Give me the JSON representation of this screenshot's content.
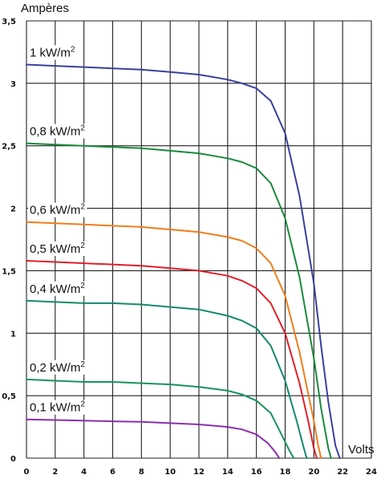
{
  "chart_data": {
    "type": "line",
    "title": "",
    "ylabel": "Ampères",
    "xlabel": "Volts",
    "xlim": [
      0,
      24
    ],
    "ylim": [
      0,
      3.5
    ],
    "x_ticks": [
      "0",
      "2",
      "4",
      "6",
      "8",
      "10",
      "12",
      "14",
      "16",
      "18",
      "20",
      "22",
      "24"
    ],
    "y_ticks": [
      "0",
      "0,5",
      "1",
      "1,5",
      "2",
      "2,5",
      "3",
      "3,5"
    ],
    "grid": true,
    "series": [
      {
        "name": "1 kW/m",
        "sup": "2",
        "color": "#3b3f9e",
        "points": [
          [
            0,
            3.15
          ],
          [
            2,
            3.14
          ],
          [
            4,
            3.13
          ],
          [
            6,
            3.12
          ],
          [
            8,
            3.11
          ],
          [
            10,
            3.09
          ],
          [
            12,
            3.07
          ],
          [
            14,
            3.03
          ],
          [
            15,
            3.0
          ],
          [
            16,
            2.96
          ],
          [
            17,
            2.86
          ],
          [
            18,
            2.6
          ],
          [
            19,
            2.1
          ],
          [
            20,
            1.4
          ],
          [
            20.5,
            0.9
          ],
          [
            21,
            0.45
          ],
          [
            21.5,
            0.1
          ],
          [
            21.8,
            0
          ]
        ]
      },
      {
        "name": "0,8 kW/m",
        "sup": "2",
        "color": "#1a8a3c",
        "points": [
          [
            0,
            2.52
          ],
          [
            2,
            2.51
          ],
          [
            4,
            2.5
          ],
          [
            6,
            2.49
          ],
          [
            8,
            2.48
          ],
          [
            10,
            2.46
          ],
          [
            12,
            2.44
          ],
          [
            14,
            2.4
          ],
          [
            15,
            2.37
          ],
          [
            16,
            2.32
          ],
          [
            17,
            2.2
          ],
          [
            18,
            1.92
          ],
          [
            19,
            1.45
          ],
          [
            20,
            0.8
          ],
          [
            20.5,
            0.4
          ],
          [
            21,
            0.08
          ],
          [
            21.2,
            0
          ]
        ]
      },
      {
        "name": "0,6 kW/m",
        "sup": "2",
        "color": "#f07d1a",
        "points": [
          [
            0,
            1.89
          ],
          [
            2,
            1.88
          ],
          [
            4,
            1.87
          ],
          [
            6,
            1.86
          ],
          [
            8,
            1.85
          ],
          [
            10,
            1.83
          ],
          [
            12,
            1.81
          ],
          [
            14,
            1.77
          ],
          [
            15,
            1.74
          ],
          [
            16,
            1.68
          ],
          [
            17,
            1.56
          ],
          [
            18,
            1.3
          ],
          [
            19,
            0.85
          ],
          [
            20,
            0.3
          ],
          [
            20.3,
            0.1
          ],
          [
            20.5,
            0
          ]
        ]
      },
      {
        "name": "0,5 kW/m",
        "sup": "2",
        "color": "#e0202a",
        "points": [
          [
            0,
            1.58
          ],
          [
            2,
            1.57
          ],
          [
            4,
            1.56
          ],
          [
            6,
            1.55
          ],
          [
            8,
            1.54
          ],
          [
            10,
            1.52
          ],
          [
            12,
            1.5
          ],
          [
            14,
            1.46
          ],
          [
            15,
            1.42
          ],
          [
            16,
            1.36
          ],
          [
            17,
            1.24
          ],
          [
            18,
            1.0
          ],
          [
            19,
            0.6
          ],
          [
            19.6,
            0.3
          ],
          [
            20,
            0.08
          ],
          [
            20.2,
            0
          ]
        ]
      },
      {
        "name": "0,4 kW/m",
        "sup": "2",
        "color": "#138a6c",
        "points": [
          [
            0,
            1.26
          ],
          [
            2,
            1.25
          ],
          [
            4,
            1.24
          ],
          [
            6,
            1.24
          ],
          [
            8,
            1.23
          ],
          [
            10,
            1.21
          ],
          [
            12,
            1.19
          ],
          [
            14,
            1.14
          ],
          [
            15,
            1.1
          ],
          [
            16,
            1.04
          ],
          [
            17,
            0.9
          ],
          [
            18,
            0.62
          ],
          [
            18.8,
            0.3
          ],
          [
            19.3,
            0.08
          ],
          [
            19.5,
            0
          ]
        ]
      },
      {
        "name": "0,2 kW/m",
        "sup": "2",
        "color": "#17945c",
        "points": [
          [
            0,
            0.63
          ],
          [
            2,
            0.62
          ],
          [
            4,
            0.61
          ],
          [
            6,
            0.61
          ],
          [
            8,
            0.6
          ],
          [
            10,
            0.59
          ],
          [
            12,
            0.57
          ],
          [
            14,
            0.54
          ],
          [
            15,
            0.51
          ],
          [
            16,
            0.46
          ],
          [
            17,
            0.36
          ],
          [
            17.7,
            0.2
          ],
          [
            18.3,
            0.06
          ],
          [
            18.6,
            0
          ]
        ]
      },
      {
        "name": "0,1 kW/m",
        "sup": "2",
        "color": "#8a2fb0",
        "points": [
          [
            0,
            0.31
          ],
          [
            2,
            0.305
          ],
          [
            4,
            0.3
          ],
          [
            6,
            0.295
          ],
          [
            8,
            0.29
          ],
          [
            10,
            0.28
          ],
          [
            12,
            0.27
          ],
          [
            14,
            0.25
          ],
          [
            15,
            0.23
          ],
          [
            16,
            0.19
          ],
          [
            16.8,
            0.12
          ],
          [
            17.3,
            0.05
          ],
          [
            17.6,
            0
          ]
        ]
      }
    ]
  }
}
